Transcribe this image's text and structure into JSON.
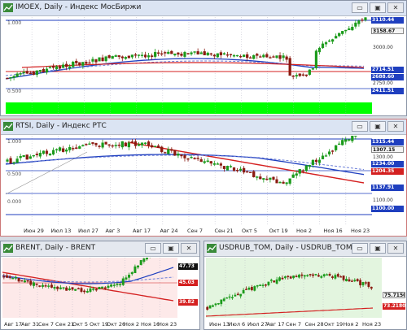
{
  "windows": {
    "imoex": {
      "title": "IMOEX, Daily - Индекс МосБиржи",
      "buttons": {
        "minimize": "▭",
        "maximize": "▣",
        "close": "✕"
      },
      "y_labels": [
        "3000.00",
        "2750.00"
      ],
      "price_tags": {
        "top": "3110.44",
        "current": "3158.67",
        "low1": "2714.51",
        "low2": "2688.60",
        "bottom": "2411.51"
      },
      "indicator_labels": {
        "top": "1.000",
        "mid": "0.500"
      }
    },
    "rtsi": {
      "title": "RTSI, Daily - Индекс РТС",
      "buttons": {
        "minimize": "▭",
        "maximize": "▣",
        "close": "✕"
      },
      "x_labels": [
        "Июн 29",
        "Июл 13",
        "Июл 27",
        "Авг 3",
        "Авг 17",
        "Авг 24",
        "Сен 7",
        "Сен 21",
        "Окт 5",
        "Окт 19",
        "Ноя 2",
        "Ноя 16",
        "Ноя 23"
      ],
      "y_labels": [
        "1300.00",
        "1100.00"
      ],
      "price_tags": {
        "top": "1315.44",
        "current": "1307.15",
        "mid1": "1234.00",
        "mid2": "1204.35",
        "low1": "1137.91",
        "low2": "1100.00"
      },
      "indicator_labels": {
        "top": "1.000",
        "mid": "0.500",
        "low": "0.000"
      }
    },
    "brent": {
      "title": "BRENT, Daily - BRENT",
      "buttons": {
        "minimize": "▭",
        "maximize": "▣",
        "close": "✕"
      },
      "x_labels": [
        "Авг 17",
        "Авг 31",
        "Сен 7",
        "Сен 21",
        "Окт 5",
        "Окт 19",
        "Окт 26",
        "Ноя 2",
        "Ноя 16",
        "Ноя 23"
      ],
      "price_tags": {
        "top": "47.73",
        "mid": "45.03",
        "low": "39.82"
      }
    },
    "usdrub": {
      "title": "USDRUB_TOM, Daily - USDRUB_TOM",
      "buttons": {
        "minimize": "▭",
        "maximize": "▣",
        "close": "✕"
      },
      "x_labels": [
        "Июн 13",
        "Июл 6",
        "Июл 27",
        "Авг 17",
        "Сен 7",
        "Сен 28",
        "Окт 19",
        "Ноя 2",
        "Ноя 23"
      ],
      "price_tags": {
        "current": "75.7150",
        "low": "73.2180"
      }
    }
  },
  "colors": {
    "accent_blue": "#1f3fbf",
    "ma_red": "#d42020",
    "bull": "#1a9a1a",
    "bear": "#8a1a10",
    "green_band": "#00ff00",
    "brent_bg": "#fde9e9",
    "usdrub_bg": "#e3f5df"
  }
}
